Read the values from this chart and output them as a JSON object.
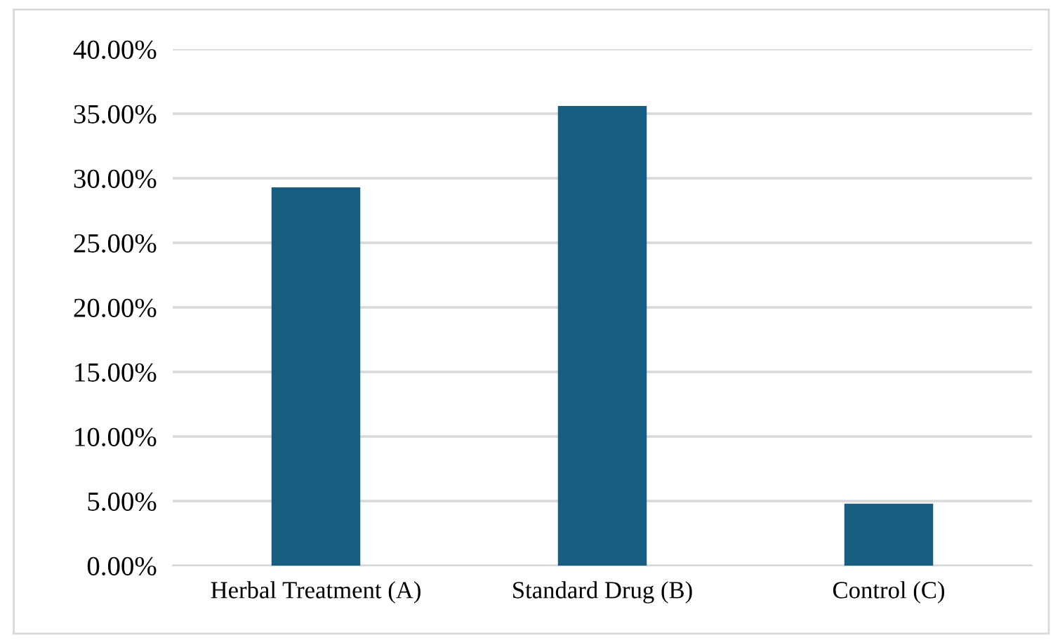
{
  "chart_data": {
    "type": "bar",
    "categories": [
      "Herbal Treatment (A)",
      "Standard Drug (B)",
      "Control (C)"
    ],
    "values": [
      29.3,
      35.6,
      4.8
    ],
    "color": "#175e82",
    "ylim": [
      0,
      40
    ],
    "yticks": [
      {
        "value": 0,
        "label": "0.00%"
      },
      {
        "value": 5,
        "label": "5.00%"
      },
      {
        "value": 10,
        "label": "10.00%"
      },
      {
        "value": 15,
        "label": "15.00%"
      },
      {
        "value": 20,
        "label": "20.00%"
      },
      {
        "value": 25,
        "label": "25.00%"
      },
      {
        "value": 30,
        "label": "30.00%"
      },
      {
        "value": 35,
        "label": "35.00%"
      },
      {
        "value": 40,
        "label": "40.00%"
      }
    ],
    "grid": "y"
  }
}
